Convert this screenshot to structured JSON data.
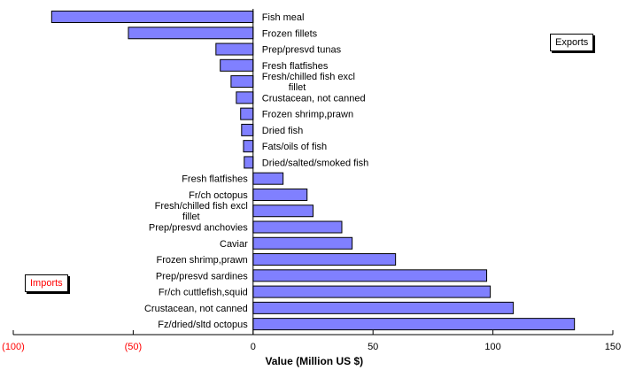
{
  "chart_data": {
    "type": "bar",
    "orientation": "horizontal",
    "xlabel": "Value (Million US $)",
    "xlim": [
      -100,
      150
    ],
    "xticks": [
      -100,
      -50,
      0,
      50,
      100,
      150
    ],
    "xtick_labels": [
      "(100)",
      "(50)",
      "0",
      "50",
      "100",
      "150"
    ],
    "negative_tick_color": "#ff0000",
    "bar_color": "#8080ff",
    "grid": false,
    "series": [
      {
        "name": "Exports",
        "categories": [
          "Fish meal",
          "Frozen fillets",
          "Prep/presvd tunas",
          "Fresh flatfishes",
          "Fresh/chilled fish excl fillet",
          "Crustacean, not canned",
          "Frozen shrimp,prawn",
          "Dried fish",
          "Fats/oils of fish",
          "Dried/salted/smoked fish"
        ],
        "values": [
          -84,
          -52,
          -15.5,
          -13.7,
          -9.2,
          -7,
          -5.2,
          -4.8,
          -4,
          -3.7
        ]
      },
      {
        "name": "Imports",
        "categories": [
          "Fresh flatfishes",
          "Fr/ch octopus",
          "Fresh/chilled fish excl fillet",
          "Prep/presvd anchovies",
          "Caviar",
          "Frozen shrimp,prawn",
          "Prep/presvd sardines",
          "Fr/ch cuttlefish,squid",
          "Crustacean, not canned",
          "Fz/dried/sltd octopus"
        ],
        "values": [
          12.5,
          22.5,
          25,
          37,
          41.3,
          59.4,
          97.4,
          98.9,
          108.5,
          134
        ]
      }
    ],
    "legend": {
      "exports_label": "Exports",
      "imports_label": "Imports",
      "imports_color": "#ff0000"
    }
  }
}
